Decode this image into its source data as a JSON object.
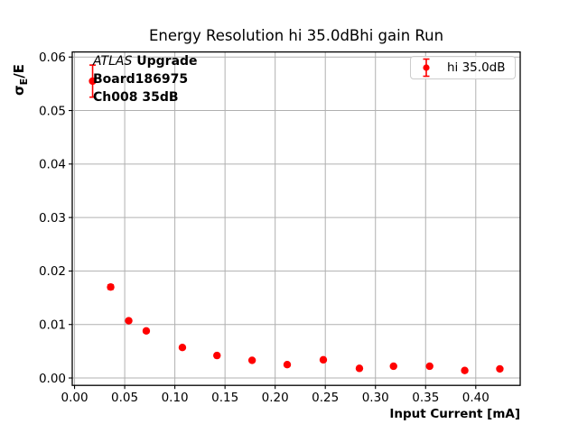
{
  "title": "Energy Resolution hi 35.0dBhi gain Run",
  "ylabel_parts": {
    "sigma": "σ",
    "sub": "E",
    "rest": "/E"
  },
  "annotation": {
    "experiment": "ATLAS",
    "upgrade": " Upgrade",
    "board": "Board186975",
    "channel": "Ch008 35dB"
  },
  "legend": {
    "label": "hi 35.0dB"
  },
  "colors": {
    "series": "#ff0000",
    "grid": "#b0b0b0",
    "spine": "#000000",
    "legend_border": "#cccccc",
    "text": "#000000"
  },
  "chart_data": {
    "type": "scatter",
    "title": "Energy Resolution hi 35.0dBhi gain Run",
    "xlabel": "Input Current [mA]",
    "ylabel": "σE/E",
    "xlim": [
      -0.0023,
      0.4443
    ],
    "ylim": [
      -0.00138,
      0.06095
    ],
    "xtick_labels": [
      "0.00",
      "0.05",
      "0.10",
      "0.15",
      "0.20",
      "0.25",
      "0.30",
      "0.35",
      "0.40"
    ],
    "ytick_labels": [
      "0.00",
      "0.01",
      "0.02",
      "0.03",
      "0.04",
      "0.05",
      "0.06"
    ],
    "grid": true,
    "legend_position": "upper right",
    "series": [
      {
        "name": "hi 35.0dB",
        "color": "#ff0000",
        "marker": "circle-with-errorbars",
        "points": [
          {
            "x": 0.018,
            "y": 0.0555,
            "yerr": 0.003
          },
          {
            "x": 0.036,
            "y": 0.017,
            "yerr": 0.0004
          },
          {
            "x": 0.054,
            "y": 0.0107,
            "yerr": 0.0003
          },
          {
            "x": 0.0715,
            "y": 0.0088,
            "yerr": 0.0003
          },
          {
            "x": 0.1075,
            "y": 0.0057,
            "yerr": 0.0002
          },
          {
            "x": 0.142,
            "y": 0.0042,
            "yerr": 0.0002
          },
          {
            "x": 0.177,
            "y": 0.0033,
            "yerr": 0.0002
          },
          {
            "x": 0.212,
            "y": 0.0025,
            "yerr": 0.0002
          },
          {
            "x": 0.248,
            "y": 0.0034,
            "yerr": 0.0002
          },
          {
            "x": 0.284,
            "y": 0.0018,
            "yerr": 0.0002
          },
          {
            "x": 0.318,
            "y": 0.0022,
            "yerr": 0.0002
          },
          {
            "x": 0.354,
            "y": 0.0022,
            "yerr": 0.0002
          },
          {
            "x": 0.389,
            "y": 0.0014,
            "yerr": 0.0002
          },
          {
            "x": 0.424,
            "y": 0.0017,
            "yerr": 0.0002
          }
        ]
      }
    ]
  }
}
